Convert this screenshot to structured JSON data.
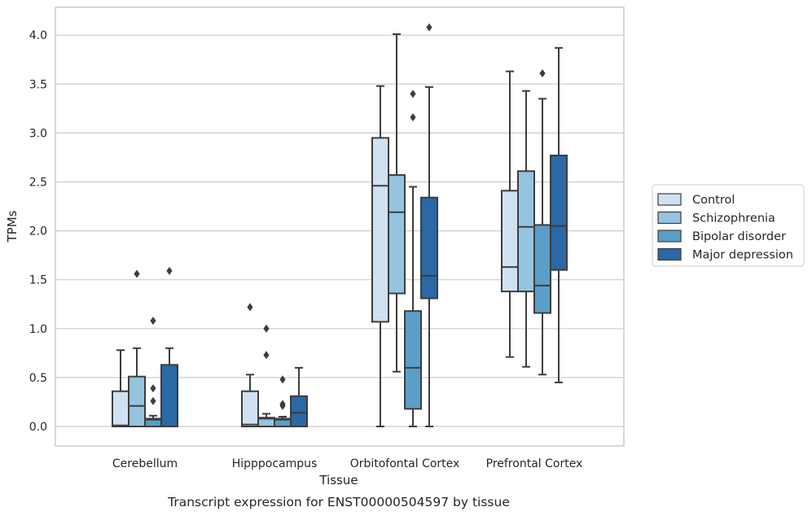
{
  "chart_data": {
    "type": "boxplot",
    "caption": "Transcript expression for ENST00000504597 by tissue",
    "xlabel": "Tissue",
    "ylabel": "TPMs",
    "ylim": [
      -0.2,
      4.28
    ],
    "yticks": [
      0.0,
      0.5,
      1.0,
      1.5,
      2.0,
      2.5,
      3.0,
      3.5,
      4.0
    ],
    "ytick_labels": [
      "0.0",
      "0.5",
      "1.0",
      "1.5",
      "2.0",
      "2.5",
      "3.0",
      "3.5",
      "4.0"
    ],
    "grid": true,
    "legend_position": "right",
    "categories": [
      "Cerebellum",
      "Hipppocampus",
      "Orbitofontal Cortex",
      "Prefrontal Cortex"
    ],
    "series": [
      {
        "name": "Control",
        "color": "#d0e1f2",
        "boxes": [
          {
            "whislo": 0.0,
            "q1": 0.0,
            "med": 0.01,
            "q3": 0.36,
            "whishi": 0.78,
            "fliers": []
          },
          {
            "whislo": 0.0,
            "q1": 0.0,
            "med": 0.02,
            "q3": 0.36,
            "whishi": 0.53,
            "fliers": [
              1.22
            ]
          },
          {
            "whislo": 0.0,
            "q1": 1.07,
            "med": 2.46,
            "q3": 2.95,
            "whishi": 3.48,
            "fliers": []
          },
          {
            "whislo": 0.71,
            "q1": 1.38,
            "med": 1.63,
            "q3": 2.41,
            "whishi": 3.63,
            "fliers": []
          }
        ]
      },
      {
        "name": "Schizophrenia",
        "color": "#94c4df",
        "boxes": [
          {
            "whislo": 0.0,
            "q1": 0.0,
            "med": 0.21,
            "q3": 0.51,
            "whishi": 0.8,
            "fliers": [
              1.56
            ]
          },
          {
            "whislo": 0.0,
            "q1": 0.0,
            "med": 0.08,
            "q3": 0.09,
            "whishi": 0.13,
            "fliers": [
              1.0,
              0.73
            ]
          },
          {
            "whislo": 0.56,
            "q1": 1.36,
            "med": 2.19,
            "q3": 2.57,
            "whishi": 4.01,
            "fliers": []
          },
          {
            "whislo": 0.61,
            "q1": 1.38,
            "med": 2.04,
            "q3": 2.61,
            "whishi": 3.43,
            "fliers": []
          }
        ]
      },
      {
        "name": "Bipolar disorder",
        "color": "#5b9ec9",
        "boxes": [
          {
            "whislo": 0.0,
            "q1": 0.0,
            "med": 0.07,
            "q3": 0.08,
            "whishi": 0.11,
            "fliers": [
              1.08,
              0.39,
              0.26
            ]
          },
          {
            "whislo": 0.0,
            "q1": 0.0,
            "med": 0.07,
            "q3": 0.08,
            "whishi": 0.1,
            "fliers": [
              0.48,
              0.23,
              0.21
            ]
          },
          {
            "whislo": 0.0,
            "q1": 0.18,
            "med": 0.6,
            "q3": 1.18,
            "whishi": 2.45,
            "fliers": [
              3.4,
              3.16
            ]
          },
          {
            "whislo": 0.53,
            "q1": 1.16,
            "med": 1.44,
            "q3": 2.06,
            "whishi": 3.35,
            "fliers": [
              3.61
            ]
          }
        ]
      },
      {
        "name": "Major depression",
        "color": "#2a68a6",
        "boxes": [
          {
            "whislo": 0.0,
            "q1": 0.0,
            "med": 0.0,
            "q3": 0.63,
            "whishi": 0.8,
            "fliers": [
              1.59
            ]
          },
          {
            "whislo": 0.0,
            "q1": 0.0,
            "med": 0.14,
            "q3": 0.31,
            "whishi": 0.6,
            "fliers": []
          },
          {
            "whislo": 0.0,
            "q1": 1.31,
            "med": 1.54,
            "q3": 2.34,
            "whishi": 3.47,
            "fliers": [
              4.08
            ]
          },
          {
            "whislo": 0.45,
            "q1": 1.6,
            "med": 2.05,
            "q3": 2.77,
            "whishi": 3.87,
            "fliers": []
          }
        ]
      }
    ]
  }
}
